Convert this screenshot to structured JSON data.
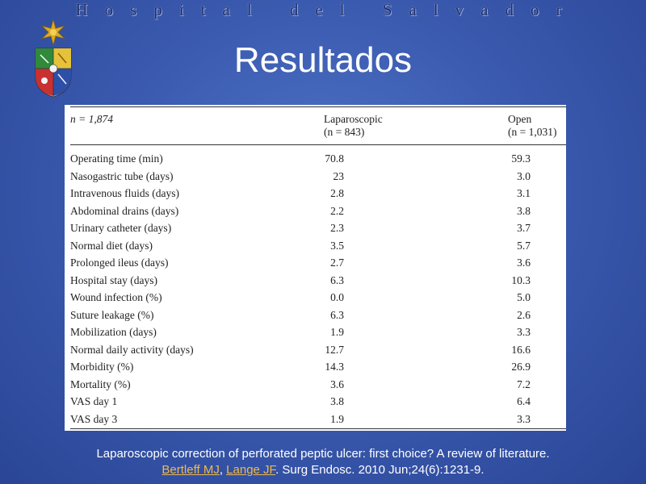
{
  "header": {
    "institution": "Hospital del Salvador"
  },
  "title": "Resultados",
  "table": {
    "n_label": "n = 1,874",
    "lap_header": "Laparoscopic",
    "lap_n": "(n = 843)",
    "open_header": "Open",
    "open_n": "(n = 1,031)",
    "rows": [
      {
        "label": "Operating time (min)",
        "lap": "70.8",
        "open": "59.3"
      },
      {
        "label": "Nasogastric tube (days)",
        "lap": "23",
        "open": "3.0"
      },
      {
        "label": "Intravenous fluids (days)",
        "lap": "2.8",
        "open": "3.1"
      },
      {
        "label": "Abdominal drains (days)",
        "lap": "2.2",
        "open": "3.8"
      },
      {
        "label": "Urinary catheter (days)",
        "lap": "2.3",
        "open": "3.7"
      },
      {
        "label": "Normal diet (days)",
        "lap": "3.5",
        "open": "5.7"
      },
      {
        "label": "Prolonged ileus (days)",
        "lap": "2.7",
        "open": "3.6"
      },
      {
        "label": "Hospital stay (days)",
        "lap": "6.3",
        "open": "10.3"
      },
      {
        "label": "Wound infection (%)",
        "lap": "0.0",
        "open": "5.0"
      },
      {
        "label": "Suture leakage (%)",
        "lap": "6.3",
        "open": "2.6"
      },
      {
        "label": "Mobilization (days)",
        "lap": "1.9",
        "open": "3.3"
      },
      {
        "label": "Normal daily activity (days)",
        "lap": "12.7",
        "open": "16.6"
      },
      {
        "label": "Morbidity (%)",
        "lap": "14.3",
        "open": "26.9"
      },
      {
        "label": "Mortality (%)",
        "lap": "3.6",
        "open": "7.2"
      },
      {
        "label": "VAS day 1",
        "lap": "3.8",
        "open": "6.4"
      },
      {
        "label": "VAS day 3",
        "lap": "1.9",
        "open": "3.3"
      }
    ]
  },
  "citation": {
    "line1": "Laparoscopic correction of perforated peptic ulcer: first choice? A review of literature.",
    "author1": "Bertleff MJ",
    "sep": ", ",
    "author2": "Lange JF",
    "rest": ". Surg Endosc. 2010 Jun;24(6):1231-9."
  },
  "colors": {
    "background": "#3b5bb0",
    "link": "#f0b84a",
    "title": "#ffffff"
  },
  "icons": {
    "logo": "university-coat-of-arms-icon"
  }
}
